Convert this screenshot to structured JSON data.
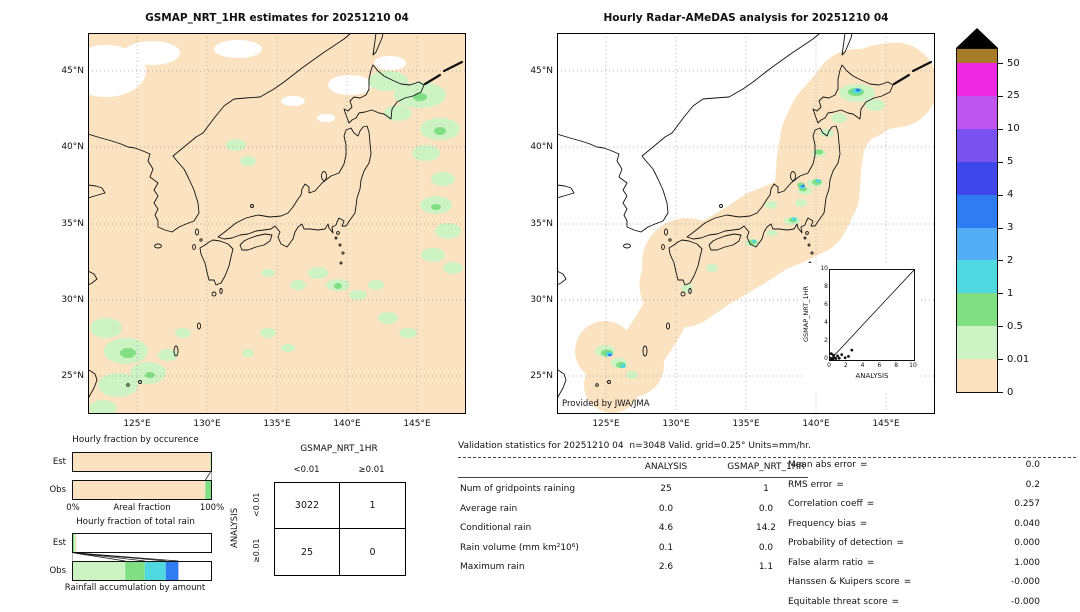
{
  "colors": {
    "peach": "#fbe3c2",
    "palegreen": "#cdf2c4",
    "green": "#7fdf82",
    "cyan": "#50d8e0",
    "lightblue": "#54aef5",
    "blue": "#2e7bf2",
    "indigo": "#3f46ea",
    "purple": "#7a52f0",
    "orchid": "#bf55f0",
    "magenta": "#ee28e2",
    "brown": "#a67c28"
  },
  "left_map": {
    "title": "GSMAP_NRT_1HR estimates for 20251210 04",
    "lat_labels": [
      "45°N",
      "40°N",
      "35°N",
      "30°N",
      "25°N"
    ],
    "lon_labels": [
      "125°E",
      "130°E",
      "135°E",
      "140°E",
      "145°E"
    ]
  },
  "right_map": {
    "title": "Hourly Radar-AMeDAS analysis for 20251210 04",
    "lat_labels": [
      "45°N",
      "40°N",
      "35°N",
      "30°N",
      "25°N"
    ],
    "lon_labels": [
      "125°E",
      "130°E",
      "135°E",
      "140°E",
      "145°E"
    ],
    "credit": "Provided by JWA/JMA",
    "inset": {
      "ylabel": "GSMAP_NRT_1HR",
      "xlabel": "ANALYSIS",
      "x_ticks": [
        "0",
        "2",
        "4",
        "6",
        "8",
        "10"
      ],
      "y_ticks": [
        "0",
        "2",
        "4",
        "6",
        "8",
        "10"
      ],
      "points": [
        [
          0.1,
          0.05
        ],
        [
          0.2,
          0.15
        ],
        [
          0.35,
          0.1
        ],
        [
          0.5,
          0.3
        ],
        [
          0.7,
          0.15
        ],
        [
          0.9,
          0.45
        ],
        [
          1.1,
          0.2
        ],
        [
          1.4,
          0.6
        ],
        [
          1.8,
          0.25
        ],
        [
          2.2,
          0.4
        ],
        [
          2.6,
          1.1
        ],
        [
          0.15,
          0.7
        ],
        [
          0.4,
          0.55
        ],
        [
          0.05,
          0.2
        ]
      ]
    }
  },
  "colorbar": {
    "labels": [
      "50",
      "25",
      "10",
      "5",
      "4",
      "3",
      "2",
      "1",
      "0.5",
      "0.01",
      "0"
    ],
    "segments": [
      "brown",
      "magenta",
      "orchid",
      "purple",
      "indigo",
      "blue",
      "lightblue",
      "cyan",
      "green",
      "palegreen",
      "peach"
    ]
  },
  "fractions": {
    "occurrence": {
      "title": "Hourly fraction by occurence",
      "row_labels": [
        "Est",
        "Obs"
      ],
      "x_min_label": "0%",
      "x_max_label": "100%",
      "x_axis_label": "Areal fraction",
      "est_segments": [
        [
          "peach",
          99.0
        ],
        [
          "green",
          1.0
        ]
      ],
      "obs_segments": [
        [
          "peach",
          95.2
        ],
        [
          "green",
          4.1
        ],
        [
          "cyan",
          0.7
        ]
      ],
      "connectors": [
        [
          99.0,
          95.2
        ],
        [
          100,
          100
        ]
      ]
    },
    "total_rain": {
      "title": "Hourly fraction of total rain",
      "row_labels": [
        "Est",
        "Obs"
      ],
      "caption": "Rainfall accumulation by amount",
      "est_segments": [
        [
          "green",
          1.6
        ],
        [
          "palegreen",
          0.9
        ],
        [
          "peach",
          0.8
        ]
      ],
      "obs_segments": [
        [
          "palegreen",
          38.0
        ],
        [
          "green",
          14.0
        ],
        [
          "cyan",
          15.0
        ],
        [
          "blue",
          9.0
        ]
      ],
      "connectors": [
        [
          0,
          0
        ],
        [
          1.6,
          38.0
        ],
        [
          2.5,
          52.0
        ],
        [
          3.3,
          67.0
        ],
        [
          3.3,
          76.0
        ]
      ]
    }
  },
  "contingency": {
    "title": "GSMAP_NRT_1HR",
    "col_labels": [
      "<0.01",
      "≥0.01"
    ],
    "row_axis_label": "ANALYSIS",
    "row_labels": [
      "<0.01",
      "≥0.01"
    ],
    "cells": [
      [
        "3022",
        "1"
      ],
      [
        "25",
        "0"
      ]
    ]
  },
  "stats": {
    "title": "Validation statistics for 20251210 04  n=3048 Valid. grid=0.25° Units=mm/hr.",
    "eq": "=",
    "columns": [
      "ANALYSIS",
      "GSMAP_NRT_1HR"
    ],
    "rows": [
      {
        "label": "Num of gridpoints raining",
        "analysis": "25",
        "gsmap": "1"
      },
      {
        "label": "Average rain",
        "analysis": "0.0",
        "gsmap": "0.0"
      },
      {
        "label": "Conditional rain",
        "analysis": "4.6",
        "gsmap": "14.2"
      },
      {
        "label": "Rain volume (mm km²10⁶)",
        "analysis": "0.1",
        "gsmap": "0.0"
      },
      {
        "label": "Maximum rain",
        "analysis": "2.6",
        "gsmap": "1.1"
      }
    ],
    "metrics": [
      {
        "label": "Mean abs error",
        "value": "0.0"
      },
      {
        "label": "RMS error",
        "value": "0.2"
      },
      {
        "label": "Correlation coeff",
        "value": "0.257"
      },
      {
        "label": "Frequency bias",
        "value": "0.040"
      },
      {
        "label": "Probability of detection",
        "value": "0.000"
      },
      {
        "label": "False alarm ratio",
        "value": "1.000"
      },
      {
        "label": "Hanssen & Kuipers score",
        "value": "-0.000"
      },
      {
        "label": "Equitable threat score",
        "value": "-0.000"
      }
    ]
  },
  "chart_data": [
    {
      "type": "heatmap",
      "title": "GSMAP_NRT_1HR estimates for 20251210 04",
      "x_ticks": [
        "125°E",
        "130°E",
        "135°E",
        "140°E",
        "145°E"
      ],
      "y_ticks": [
        "45°N",
        "40°N",
        "35°N",
        "30°N",
        "25°N"
      ],
      "units": "mm/hr",
      "color_levels": [
        0,
        0.01,
        0.5,
        1,
        2,
        3,
        4,
        5,
        10,
        25,
        50
      ],
      "description": "GSMaP satellite hourly rain map over Japan; mostly 0-0.01 background (peach) with scattered 0.01-1 mm/hr patches (greens)"
    },
    {
      "type": "heatmap",
      "title": "Hourly Radar-AMeDAS analysis for 20251210 04",
      "x_ticks": [
        "125°E",
        "130°E",
        "135°E",
        "140°E",
        "145°E"
      ],
      "y_ticks": [
        "45°N",
        "40°N",
        "35°N",
        "30°N",
        "25°N"
      ],
      "units": "mm/hr",
      "color_levels": [
        0,
        0.01,
        0.5,
        1,
        2,
        3,
        4,
        5,
        10,
        25,
        50
      ],
      "annotation": "Provided by JWA/JMA",
      "description": "Radar-AMeDAS analysed rain inside radar coverage band along the Japanese archipelago; light rain patches up to ~3 mm/hr"
    },
    {
      "type": "scatter",
      "xlabel": "ANALYSIS",
      "ylabel": "GSMAP_NRT_1HR",
      "xlim": [
        0,
        10
      ],
      "ylim": [
        0,
        10
      ],
      "points": [
        [
          0.1,
          0.05
        ],
        [
          0.2,
          0.15
        ],
        [
          0.35,
          0.1
        ],
        [
          0.5,
          0.3
        ],
        [
          0.7,
          0.15
        ],
        [
          0.9,
          0.45
        ],
        [
          1.1,
          0.2
        ],
        [
          1.4,
          0.6
        ],
        [
          1.8,
          0.25
        ],
        [
          2.2,
          0.4
        ],
        [
          2.6,
          1.1
        ],
        [
          0.15,
          0.7
        ],
        [
          0.4,
          0.55
        ],
        [
          0.05,
          0.2
        ]
      ],
      "reference_line": "y=x"
    },
    {
      "type": "bar",
      "title": "Hourly fraction by occurence",
      "categories": [
        "Est",
        "Obs"
      ],
      "series": [
        {
          "name": "0-0.01",
          "values": [
            99.0,
            95.2
          ]
        },
        {
          "name": "0.01-0.5",
          "values": [
            1.0,
            4.1
          ]
        },
        {
          "name": "0.5-1",
          "values": [
            0,
            0.7
          ]
        }
      ],
      "xlabel": "Areal fraction",
      "xlim": [
        "0%",
        "100%"
      ]
    },
    {
      "type": "bar",
      "title": "Hourly fraction of total rain",
      "categories": [
        "Est",
        "Obs"
      ],
      "series": [
        {
          "name": "0.01-0.5",
          "values": [
            0.9,
            38.0
          ]
        },
        {
          "name": "0.5-1",
          "values": [
            1.6,
            14.0
          ]
        },
        {
          "name": "1-2",
          "values": [
            0,
            15.0
          ]
        },
        {
          "name": "2-3",
          "values": [
            0,
            9.0
          ]
        }
      ],
      "caption": "Rainfall accumulation by amount"
    },
    {
      "type": "table",
      "title": "GSMAP_NRT_1HR / ANALYSIS contingency",
      "columns": [
        "<0.01",
        "≥0.01"
      ],
      "row_labels": [
        "<0.01",
        "≥0.01"
      ],
      "rows": [
        [
          3022,
          1
        ],
        [
          25,
          0
        ]
      ]
    },
    {
      "type": "table",
      "title": "Validation statistics for 20251210 04  n=3048 Valid. grid=0.25° Units=mm/hr.",
      "columns": [
        "",
        "ANALYSIS",
        "GSMAP_NRT_1HR"
      ],
      "rows": [
        [
          "Num of gridpoints raining",
          25,
          1
        ],
        [
          "Average rain",
          0.0,
          0.0
        ],
        [
          "Conditional rain",
          4.6,
          14.2
        ],
        [
          "Rain volume (mm km²10⁶)",
          0.1,
          0.0
        ],
        [
          "Maximum rain",
          2.6,
          1.1
        ]
      ],
      "metrics": {
        "Mean abs error": 0.0,
        "RMS error": 0.2,
        "Correlation coeff": 0.257,
        "Frequency bias": 0.04,
        "Probability of detection": 0.0,
        "False alarm ratio": 1.0,
        "Hanssen & Kuipers score": -0.0,
        "Equitable threat score": -0.0
      }
    }
  ]
}
